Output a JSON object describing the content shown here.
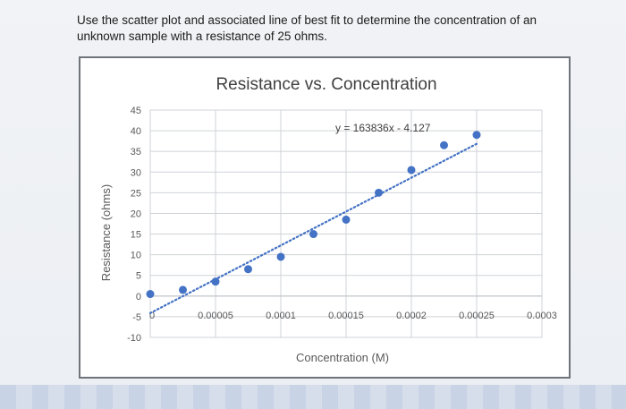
{
  "question": {
    "text": "Use the scatter plot and associated line of best fit to determine the concentration of an unknown sample with a resistance of 25 ohms."
  },
  "colors": {
    "marker": "#4472c4",
    "trendline": "#4472c4",
    "grid": "#cfd3d8",
    "axis_text": "#595959"
  },
  "chart_data": {
    "type": "scatter",
    "title": "Resistance vs. Concentration",
    "xlabel": "Concentration (M)",
    "ylabel": "Resistance (ohms)",
    "xlim": [
      0,
      0.0003
    ],
    "ylim": [
      -10,
      45
    ],
    "x_ticks": [
      0,
      5e-05,
      0.0001,
      0.00015,
      0.0002,
      0.00025,
      0.0003
    ],
    "x_tick_labels": [
      "0",
      "0.00005",
      "0.0001",
      "0.00015",
      "0.0002",
      "0.00025",
      "0.0003"
    ],
    "y_ticks": [
      -10,
      -5,
      0,
      5,
      10,
      15,
      20,
      25,
      30,
      35,
      40,
      45
    ],
    "y_tick_labels": [
      "-10",
      "-5",
      "0",
      "5",
      "10",
      "15",
      "20",
      "25",
      "30",
      "35",
      "40",
      "45"
    ],
    "grid": true,
    "legend": "none",
    "series": [
      {
        "x": [
          0,
          2.5e-05,
          5e-05,
          7.5e-05,
          0.0001,
          0.000125,
          0.00015,
          0.000175,
          0.0002,
          0.000225,
          0.00025
        ],
        "y": [
          0.5,
          1.5,
          3.5,
          6.5,
          9.5,
          15,
          18.5,
          25,
          30.5,
          36.5,
          39
        ]
      }
    ],
    "trendline": {
      "slope": 163836,
      "intercept": -4.127,
      "x_range": [
        0,
        0.00025
      ],
      "equation_label": "y = 163836x - 4.127"
    }
  }
}
